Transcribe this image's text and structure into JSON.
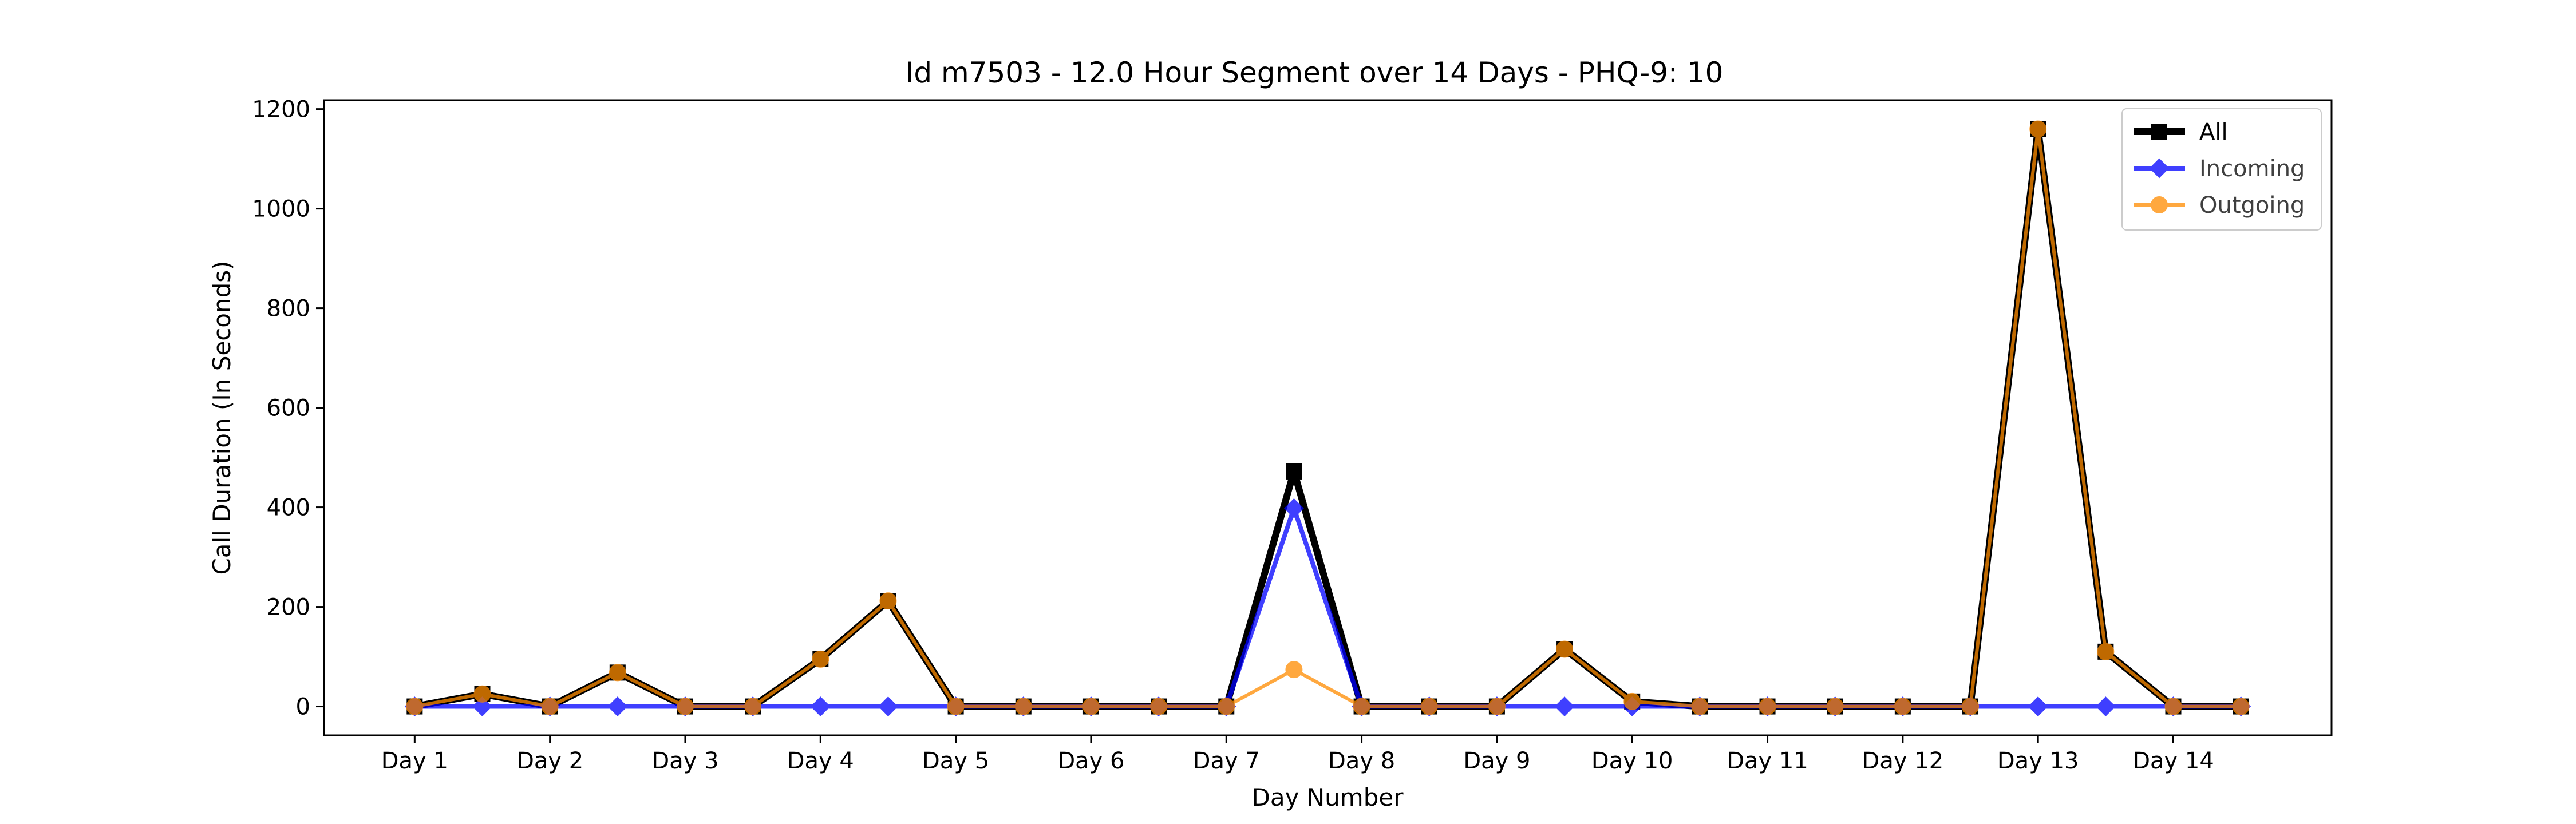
{
  "chart_data": {
    "type": "line",
    "title": "Id m7503 - 12.0 Hour Segment over 14 Days - PHQ-9: 10",
    "xlabel": "Day Number",
    "ylabel": "Call Duration (In Seconds)",
    "x": [
      1,
      1.5,
      2,
      2.5,
      3,
      3.5,
      4,
      4.5,
      5,
      5.5,
      6,
      6.5,
      7,
      7.5,
      8,
      8.5,
      9,
      9.5,
      10,
      10.5,
      11,
      11.5,
      12,
      12.5,
      13,
      13.5,
      14,
      14.5
    ],
    "xticks": [
      1,
      2,
      3,
      4,
      5,
      6,
      7,
      8,
      9,
      10,
      11,
      12,
      13,
      14
    ],
    "xtick_labels": [
      "Day 1",
      "Day 2",
      "Day 3",
      "Day 4",
      "Day 5",
      "Day 6",
      "Day 7",
      "Day 8",
      "Day 9",
      "Day 10",
      "Day 11",
      "Day 12",
      "Day 13",
      "Day 14"
    ],
    "xlim": [
      0.33,
      15.17
    ],
    "yticks": [
      0,
      200,
      400,
      600,
      800,
      1000,
      1200
    ],
    "ytick_labels": [
      "0",
      "200",
      "400",
      "600",
      "800",
      "1000",
      "1200"
    ],
    "ylim": [
      -58,
      1218
    ],
    "grid": false,
    "legend_position": "upper right",
    "series": [
      {
        "name": "All",
        "color": "#000000",
        "marker": "square",
        "values": [
          0,
          25,
          0,
          68,
          0,
          0,
          95,
          212,
          0,
          0,
          0,
          0,
          0,
          472,
          0,
          0,
          0,
          115,
          10,
          0,
          0,
          0,
          0,
          0,
          1160,
          110,
          0,
          0
        ]
      },
      {
        "name": "Incoming",
        "color": "#0000ff",
        "marker": "diamond",
        "values": [
          0,
          0,
          0,
          0,
          0,
          0,
          0,
          0,
          0,
          0,
          0,
          0,
          0,
          398,
          0,
          0,
          0,
          0,
          0,
          0,
          0,
          0,
          0,
          0,
          0,
          0,
          0,
          0
        ]
      },
      {
        "name": "Outgoing",
        "color": "#ff8c00",
        "marker": "circle",
        "values": [
          0,
          25,
          0,
          68,
          0,
          0,
          95,
          212,
          0,
          0,
          0,
          0,
          0,
          74,
          0,
          0,
          0,
          115,
          10,
          0,
          0,
          0,
          0,
          0,
          1160,
          110,
          0,
          0
        ]
      }
    ]
  }
}
